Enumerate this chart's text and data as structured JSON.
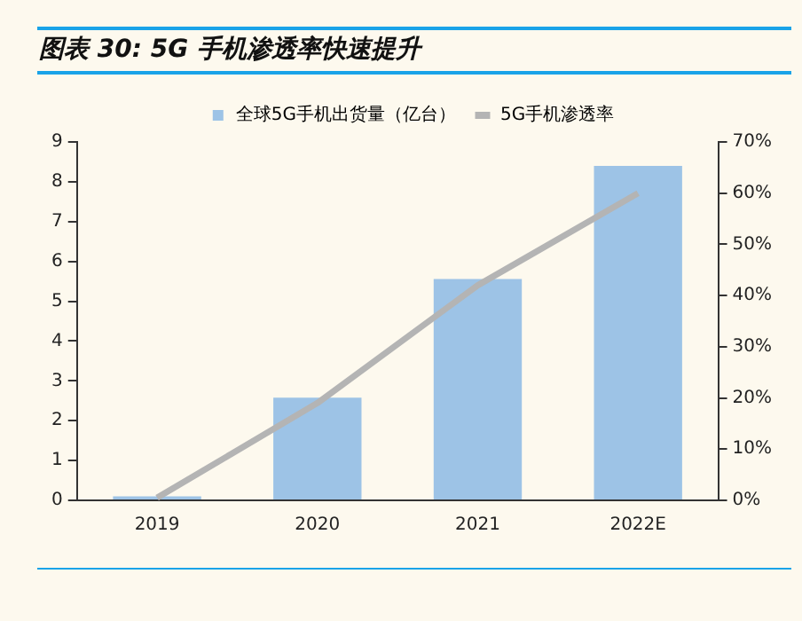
{
  "chart_data": {
    "type": "bar",
    "title": "图表 30: 5G 手机渗透率快速提升",
    "categories": [
      "2019",
      "2020",
      "2021",
      "2022E"
    ],
    "series": [
      {
        "name": "全球5G手机出货量（亿台）",
        "color": "#9dc3e6",
        "values": [
          0.1,
          2.58,
          5.56,
          8.4
        ]
      },
      {
        "name": "5G手机渗透率",
        "type": "line",
        "axis": "y2",
        "color": "#b4b4b4",
        "values": [
          0.5,
          19,
          42,
          60
        ]
      }
    ],
    "ylim": [
      0,
      9
    ],
    "yticks": [
      0,
      1,
      2,
      3,
      4,
      5,
      6,
      7,
      8,
      9
    ],
    "y2lim": [
      0,
      70
    ],
    "y2ticks": [
      {
        "value": 0,
        "label": "0%"
      },
      {
        "value": 10,
        "label": "10%"
      },
      {
        "value": 20,
        "label": "20%"
      },
      {
        "value": 30,
        "label": "30%"
      },
      {
        "value": 40,
        "label": "40%"
      },
      {
        "value": 50,
        "label": "50%"
      },
      {
        "value": 60,
        "label": "60%"
      },
      {
        "value": 70,
        "label": "70%"
      }
    ],
    "grid": false,
    "legend": "top",
    "marker": "none",
    "line_style": "solid"
  }
}
